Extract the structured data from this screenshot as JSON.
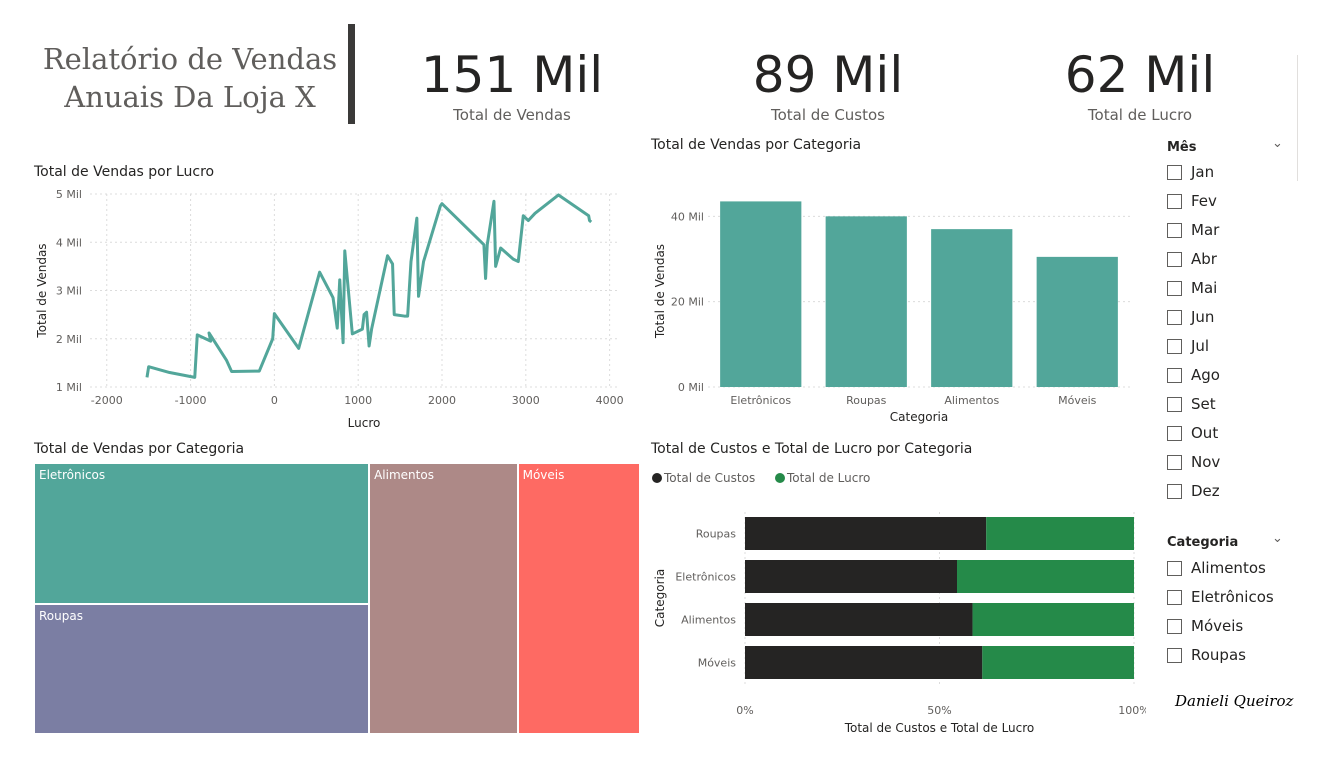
{
  "header": {
    "title_line1": "Relatório de Vendas",
    "title_line2": "Anuais Da Loja X"
  },
  "kpis": [
    {
      "value": "151 Mil",
      "label": "Total de Vendas"
    },
    {
      "value": "89 Mil",
      "label": "Total de Custos"
    },
    {
      "value": "62 Mil",
      "label": "Total de Lucro"
    }
  ],
  "slicers": {
    "month": {
      "title": "Mês",
      "items": [
        "Jan",
        "Fev",
        "Mar",
        "Abr",
        "Mai",
        "Jun",
        "Jul",
        "Ago",
        "Set",
        "Out",
        "Nov",
        "Dez"
      ]
    },
    "category": {
      "title": "Categoria",
      "items": [
        "Alimentos",
        "Eletrônicos",
        "Móveis",
        "Roupas"
      ]
    }
  },
  "signature": "Danieli Queiroz",
  "colors": {
    "teal": "#52a69a",
    "slate": "#7b7ea3",
    "mauve": "#ad8987",
    "coral": "#fe6a63",
    "black": "#252423",
    "green": "#258a49"
  },
  "chart_data": [
    {
      "type": "line",
      "title": "Total de Vendas por Lucro",
      "xlabel": "Lucro",
      "ylabel": "Total de Vendas",
      "xlim": [
        -2200,
        4100
      ],
      "ylim": [
        1,
        5
      ],
      "xticks": [
        -2000,
        -1000,
        0,
        1000,
        2000,
        3000,
        4000
      ],
      "xtick_labels": [
        "-2000",
        "-1000",
        "0",
        "1000",
        "2000",
        "3000",
        "4000"
      ],
      "yticks": [
        1,
        2,
        3,
        4,
        5
      ],
      "ytick_labels": [
        "1 Mil",
        "2 Mil",
        "3 Mil",
        "4 Mil",
        "5 Mil"
      ],
      "grid": true,
      "series": [
        {
          "color": "#52a69a",
          "x": [
            -1520,
            -1500,
            -1250,
            -950,
            -920,
            -760,
            -780,
            -570,
            -510,
            -180,
            -20,
            0,
            290,
            540,
            700,
            750,
            780,
            820,
            840,
            930,
            1050,
            1070,
            1100,
            1130,
            1160,
            1350,
            1410,
            1430,
            1550,
            1590,
            1630,
            1700,
            1720,
            1780,
            1980,
            2000,
            2500,
            2520,
            2540,
            2620,
            2640,
            2700,
            2850,
            2910,
            2970,
            3030,
            3110,
            3390,
            3750,
            3760,
            3780
          ],
          "y": [
            1.2,
            1.42,
            1.3,
            1.2,
            2.08,
            1.95,
            2.12,
            1.55,
            1.32,
            1.33,
            2.0,
            2.52,
            1.8,
            3.38,
            2.85,
            2.22,
            3.22,
            1.92,
            3.82,
            2.1,
            2.2,
            2.5,
            2.55,
            1.85,
            2.2,
            3.72,
            3.55,
            2.5,
            2.47,
            2.47,
            3.6,
            4.5,
            2.88,
            3.6,
            4.75,
            4.8,
            3.95,
            3.25,
            3.95,
            4.85,
            3.5,
            3.88,
            3.65,
            3.6,
            4.55,
            4.45,
            4.6,
            4.98,
            4.55,
            4.45,
            4.42
          ]
        }
      ]
    },
    {
      "type": "bar",
      "title": "Total de Vendas por Categoria",
      "xlabel": "Categoria",
      "ylabel": "Total de Vendas",
      "categories": [
        "Eletrônicos",
        "Roupas",
        "Alimentos",
        "Móveis"
      ],
      "values": [
        43.5,
        40,
        37,
        30.5
      ],
      "ylim": [
        0,
        45
      ],
      "yticks": [
        0,
        20,
        40
      ],
      "ytick_labels": [
        "0 Mil",
        "20 Mil",
        "40 Mil"
      ],
      "grid": true,
      "color": "#52a69a"
    },
    {
      "type": "treemap",
      "title": "Total de Vendas por Categoria",
      "items": [
        {
          "label": "Eletrônicos",
          "value": 43.5,
          "color": "#52a69a"
        },
        {
          "label": "Roupas",
          "value": 40,
          "color": "#7b7ea3"
        },
        {
          "label": "Alimentos",
          "value": 37,
          "color": "#ad8987"
        },
        {
          "label": "Móveis",
          "value": 30.5,
          "color": "#fe6a63"
        }
      ]
    },
    {
      "type": "bar",
      "orientation": "horizontal",
      "stacked": "percent",
      "title": "Total de Custos e Total de Lucro por Categoria",
      "xlabel": "Total de Custos e Total de Lucro",
      "ylabel": "Categoria",
      "categories": [
        "Roupas",
        "Eletrônicos",
        "Alimentos",
        "Móveis"
      ],
      "xticks": [
        0,
        50,
        100
      ],
      "xtick_labels": [
        "0%",
        "50%",
        "100%"
      ],
      "legend": "top-left",
      "series": [
        {
          "name": "Total de Custos",
          "color": "#252423",
          "values": [
            62,
            54.5,
            58.5,
            61
          ]
        },
        {
          "name": "Total de Lucro",
          "color": "#258a49",
          "values": [
            38,
            45.5,
            41.5,
            39
          ]
        }
      ]
    }
  ]
}
